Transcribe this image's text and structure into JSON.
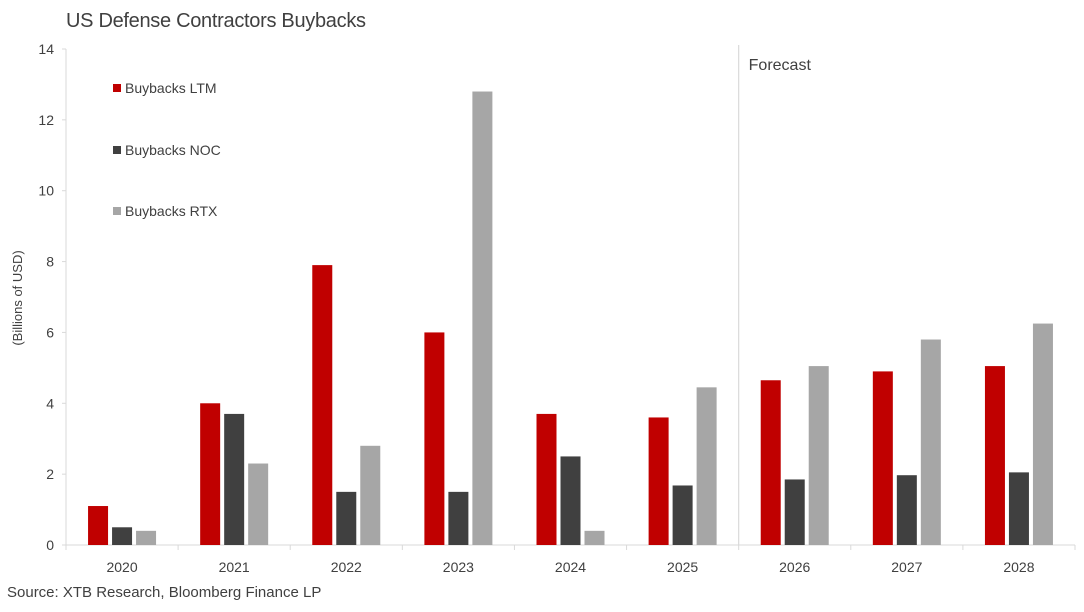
{
  "title": "US Defense Contractors Buybacks",
  "source": "Source: XTB Research, Bloomberg Finance LP",
  "chart_data": {
    "type": "bar",
    "title": "US Defense Contractors Buybacks",
    "xlabel": "",
    "ylabel": "(Billions of USD)",
    "ylim": [
      0,
      14
    ],
    "yticks": [
      0,
      2,
      4,
      6,
      8,
      10,
      12,
      14
    ],
    "categories": [
      "2020",
      "2021",
      "2022",
      "2023",
      "2024",
      "2025",
      "2026",
      "2027",
      "2028"
    ],
    "series": [
      {
        "name": "Buybacks LTM",
        "color": "#c00000",
        "values": [
          1.1,
          4.0,
          7.9,
          6.0,
          3.7,
          3.6,
          4.65,
          4.9,
          5.05
        ]
      },
      {
        "name": "Buybacks NOC",
        "color": "#404040",
        "values": [
          0.5,
          3.7,
          1.5,
          1.5,
          2.5,
          1.68,
          1.85,
          1.97,
          2.05
        ]
      },
      {
        "name": "Buybacks RTX",
        "color": "#a6a6a6",
        "values": [
          0.4,
          2.3,
          2.8,
          12.8,
          0.4,
          4.45,
          5.05,
          5.8,
          6.25
        ]
      }
    ],
    "annotation": "Forecast",
    "forecast_start": "2026",
    "legend": "top-left",
    "grid": false
  }
}
